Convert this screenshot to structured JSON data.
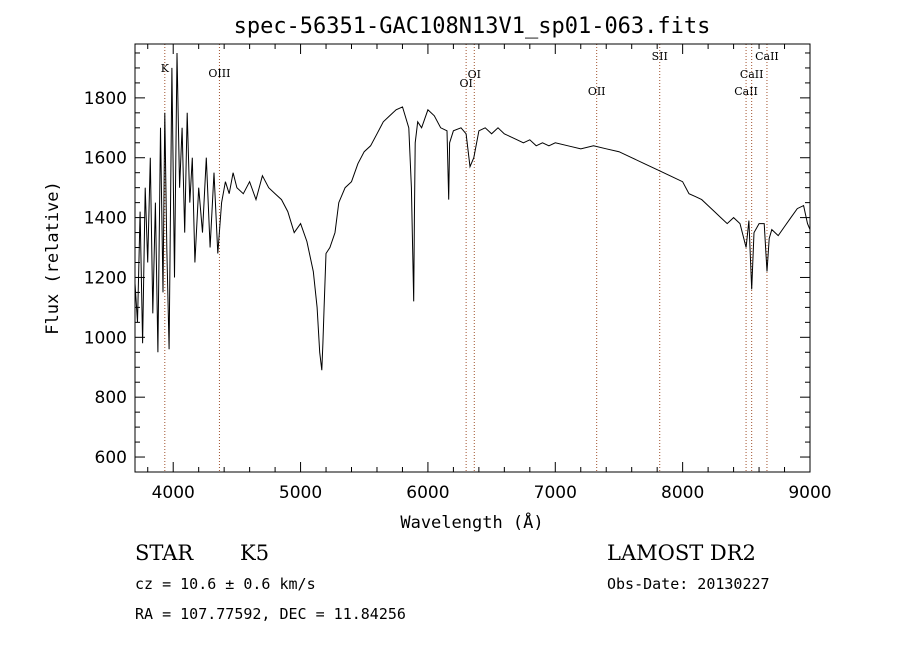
{
  "chart_data": {
    "type": "line",
    "title": "spec-56351-GAC108N13V1_sp01-063.fits",
    "xlabel": "Wavelength (Å)",
    "ylabel": "Flux (relative)",
    "xlim": [
      3700,
      9000
    ],
    "ylim": [
      550,
      1980
    ],
    "xticks": [
      4000,
      5000,
      6000,
      7000,
      8000,
      9000
    ],
    "yticks": [
      600,
      800,
      1000,
      1200,
      1400,
      1600,
      1800
    ],
    "grid": false,
    "line_color": "#000000",
    "marker_color": "#a0522d",
    "spectral_lines": [
      {
        "label": "K",
        "wavelength": 3934
      },
      {
        "label": "OIII",
        "wavelength": 4363
      },
      {
        "label": "OI",
        "wavelength": 6300
      },
      {
        "label": "OI",
        "wavelength": 6364
      },
      {
        "label": "OII",
        "wavelength": 7325
      },
      {
        "label": "SII",
        "wavelength": 7820
      },
      {
        "label": "CaII",
        "wavelength": 8498
      },
      {
        "label": "CaII",
        "wavelength": 8542
      },
      {
        "label": "CaII",
        "wavelength": 8662
      }
    ],
    "series": [
      {
        "x": [
          3700,
          3720,
          3740,
          3760,
          3780,
          3800,
          3820,
          3840,
          3860,
          3880,
          3900,
          3920,
          3934,
          3950,
          3968,
          3990,
          4010,
          4030,
          4050,
          4070,
          4090,
          4110,
          4130,
          4150,
          4170,
          4200,
          4230,
          4260,
          4290,
          4320,
          4350,
          4380,
          4410,
          4440,
          4470,
          4500,
          4550,
          4600,
          4650,
          4700,
          4750,
          4800,
          4850,
          4900,
          4950,
          5000,
          5050,
          5100,
          5130,
          5150,
          5167,
          5175,
          5185,
          5200,
          5230,
          5270,
          5300,
          5350,
          5400,
          5450,
          5500,
          5550,
          5600,
          5650,
          5700,
          5750,
          5800,
          5850,
          5870,
          5888,
          5894,
          5900,
          5920,
          5950,
          6000,
          6050,
          6100,
          6150,
          6163,
          6170,
          6200,
          6260,
          6300,
          6330,
          6360,
          6400,
          6450,
          6500,
          6550,
          6600,
          6650,
          6700,
          6750,
          6800,
          6850,
          6900,
          6950,
          7000,
          7100,
          7200,
          7300,
          7400,
          7500,
          7600,
          7700,
          7800,
          7900,
          8000,
          8050,
          8100,
          8150,
          8200,
          8250,
          8300,
          8350,
          8400,
          8450,
          8498,
          8520,
          8542,
          8560,
          8600,
          8640,
          8662,
          8680,
          8700,
          8750,
          8800,
          8850,
          8900,
          8950,
          8980,
          9000
        ],
        "y": [
          1180,
          1050,
          1420,
          980,
          1500,
          1250,
          1600,
          1080,
          1450,
          950,
          1700,
          1150,
          1750,
          1300,
          960,
          1900,
          1200,
          1950,
          1500,
          1700,
          1350,
          1750,
          1450,
          1600,
          1250,
          1500,
          1350,
          1600,
          1300,
          1550,
          1280,
          1450,
          1520,
          1480,
          1550,
          1500,
          1480,
          1520,
          1460,
          1540,
          1500,
          1480,
          1460,
          1420,
          1350,
          1380,
          1320,
          1220,
          1100,
          950,
          890,
          980,
          1100,
          1280,
          1300,
          1350,
          1450,
          1500,
          1520,
          1580,
          1620,
          1640,
          1680,
          1720,
          1740,
          1760,
          1770,
          1700,
          1500,
          1120,
          1400,
          1650,
          1720,
          1700,
          1760,
          1740,
          1700,
          1690,
          1460,
          1650,
          1690,
          1700,
          1680,
          1570,
          1600,
          1690,
          1700,
          1680,
          1700,
          1680,
          1670,
          1660,
          1650,
          1660,
          1640,
          1650,
          1640,
          1650,
          1640,
          1630,
          1640,
          1630,
          1620,
          1600,
          1580,
          1560,
          1540,
          1520,
          1480,
          1470,
          1460,
          1440,
          1420,
          1400,
          1380,
          1400,
          1380,
          1300,
          1390,
          1160,
          1350,
          1380,
          1380,
          1220,
          1330,
          1360,
          1340,
          1370,
          1400,
          1430,
          1440,
          1380,
          1360
        ]
      }
    ]
  },
  "info": {
    "object_class": "STAR",
    "subclass": "K5",
    "survey": "LAMOST DR2",
    "cz": "cz = 10.6 ± 0.6 km/s",
    "obs_date": "Obs-Date: 20130227",
    "coords": "RA = 107.77592, DEC =  11.84256"
  }
}
